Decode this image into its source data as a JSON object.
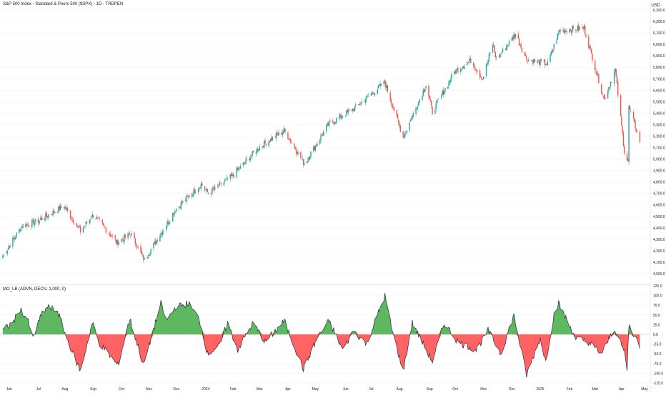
{
  "header": {
    "title": "S&P 500 Index - Standard & Poors 500 ($SPX) - 1D - TRDPEN",
    "currency": "USD"
  },
  "indicator": {
    "label": "MO_LB (ADVN, DECN, 1,000, 0)"
  },
  "colors": {
    "up": "#26a69a",
    "down": "#ef5350",
    "osc_pos": "#4caf50",
    "osc_neg": "#ff5252",
    "grid": "#f0f3fa",
    "axis_text": "#131722"
  },
  "chart_data": [
    {
      "type": "candlestick",
      "title": "S&P 500 Index - Standard & Poors 500 ($SPX) - 1D - TRDPEN",
      "ylabel": "USD",
      "ylim": [
        4000,
        6300
      ],
      "yticks": [
        "4,000.0",
        "4,100.0",
        "4,200.0",
        "4,300.0",
        "4,400.0",
        "4,500.0",
        "4,600.0",
        "4,700.0",
        "4,800.0",
        "4,900.0",
        "5,000.0",
        "5,100.0",
        "5,200.0",
        "5,300.0",
        "5,400.0",
        "5,500.0",
        "5,600.0",
        "5,700.0",
        "5,800.0",
        "5,900.0",
        "6,000.0",
        "6,100.0",
        "6,200.0",
        "6,300.0"
      ],
      "x_ticks": [
        "Jun",
        "Jul",
        "Aug",
        "Sep",
        "Oct",
        "Nov",
        "Dec",
        "2024",
        "Feb",
        "Mar",
        "Apr",
        "May",
        "Jun",
        "Jul",
        "Aug",
        "Sep",
        "Oct",
        "Nov",
        "Dec",
        "2025",
        "Feb",
        "Mar",
        "Apr",
        "May"
      ],
      "close_path": [
        [
          "2023-05-25",
          4150
        ],
        [
          "2023-06-15",
          4420
        ],
        [
          "2023-06-30",
          4450
        ],
        [
          "2023-07-31",
          4590
        ],
        [
          "2023-08-18",
          4370
        ],
        [
          "2023-09-01",
          4515
        ],
        [
          "2023-09-27",
          4270
        ],
        [
          "2023-10-12",
          4350
        ],
        [
          "2023-10-27",
          4120
        ],
        [
          "2023-11-30",
          4560
        ],
        [
          "2023-12-28",
          4780
        ],
        [
          "2024-01-05",
          4700
        ],
        [
          "2024-01-31",
          4850
        ],
        [
          "2024-02-29",
          5100
        ],
        [
          "2024-03-28",
          5250
        ],
        [
          "2024-04-19",
          4960
        ],
        [
          "2024-05-15",
          5300
        ],
        [
          "2024-06-14",
          5450
        ],
        [
          "2024-07-16",
          5670
        ],
        [
          "2024-08-05",
          5190
        ],
        [
          "2024-08-30",
          5650
        ],
        [
          "2024-09-06",
          5410
        ],
        [
          "2024-09-30",
          5760
        ],
        [
          "2024-10-18",
          5860
        ],
        [
          "2024-10-31",
          5700
        ],
        [
          "2024-11-11",
          6000
        ],
        [
          "2024-11-15",
          5870
        ],
        [
          "2024-12-06",
          6090
        ],
        [
          "2024-12-18",
          5870
        ],
        [
          "2025-01-10",
          5830
        ],
        [
          "2025-01-23",
          6120
        ],
        [
          "2025-02-19",
          6140
        ],
        [
          "2025-03-13",
          5520
        ],
        [
          "2025-03-25",
          5780
        ],
        [
          "2025-04-04",
          5070
        ],
        [
          "2025-04-08",
          4980
        ],
        [
          "2025-04-09",
          5450
        ],
        [
          "2025-04-21",
          5160
        ]
      ]
    },
    {
      "type": "area",
      "title": "MO_LB (ADVN, DECN, 1,000, 0)",
      "ylim": [
        -125,
        125
      ],
      "yticks": [
        "125.0",
        "100.0",
        "75.0",
        "50.0",
        "25.0",
        "0.0",
        "-25.0",
        "-50.0",
        "-75.0",
        "-100.0",
        "-125.0"
      ],
      "series_points": [
        [
          "2023-05-25",
          10
        ],
        [
          "2023-06-05",
          30
        ],
        [
          "2023-06-13",
          65
        ],
        [
          "2023-06-21",
          40
        ],
        [
          "2023-06-27",
          -10
        ],
        [
          "2023-07-07",
          55
        ],
        [
          "2023-07-13",
          70
        ],
        [
          "2023-07-24",
          60
        ],
        [
          "2023-08-03",
          -10
        ],
        [
          "2023-08-18",
          -95
        ],
        [
          "2023-08-31",
          30
        ],
        [
          "2023-09-07",
          -20
        ],
        [
          "2023-09-28",
          -80
        ],
        [
          "2023-10-11",
          40
        ],
        [
          "2023-10-26",
          -80
        ],
        [
          "2023-11-14",
          80
        ],
        [
          "2023-11-20",
          35
        ],
        [
          "2023-11-30",
          70
        ],
        [
          "2023-12-14",
          80
        ],
        [
          "2023-12-26",
          40
        ],
        [
          "2024-01-04",
          -50
        ],
        [
          "2024-01-17",
          -30
        ],
        [
          "2024-01-26",
          30
        ],
        [
          "2024-02-06",
          -40
        ],
        [
          "2024-02-13",
          -10
        ],
        [
          "2024-02-23",
          30
        ],
        [
          "2024-03-07",
          -20
        ],
        [
          "2024-03-28",
          35
        ],
        [
          "2024-04-18",
          -90
        ],
        [
          "2024-05-03",
          -10
        ],
        [
          "2024-05-16",
          35
        ],
        [
          "2024-05-31",
          -40
        ],
        [
          "2024-06-12",
          10
        ],
        [
          "2024-06-26",
          -25
        ],
        [
          "2024-07-16",
          100
        ],
        [
          "2024-07-24",
          10
        ],
        [
          "2024-08-05",
          -95
        ],
        [
          "2024-08-15",
          30
        ],
        [
          "2024-09-06",
          -70
        ],
        [
          "2024-09-19",
          30
        ],
        [
          "2024-10-04",
          -20
        ],
        [
          "2024-10-24",
          -40
        ],
        [
          "2024-11-06",
          10
        ],
        [
          "2024-11-20",
          -50
        ],
        [
          "2024-12-04",
          50
        ],
        [
          "2024-12-18",
          -105
        ],
        [
          "2025-01-02",
          -10
        ],
        [
          "2025-01-08",
          -70
        ],
        [
          "2025-01-17",
          50
        ],
        [
          "2025-01-22",
          80
        ],
        [
          "2025-02-10",
          -10
        ],
        [
          "2025-02-24",
          -20
        ],
        [
          "2025-03-10",
          -50
        ],
        [
          "2025-03-24",
          15
        ],
        [
          "2025-04-04",
          -45
        ],
        [
          "2025-04-07",
          -90
        ],
        [
          "2025-04-09",
          25
        ],
        [
          "2025-04-21",
          -30
        ]
      ]
    }
  ]
}
